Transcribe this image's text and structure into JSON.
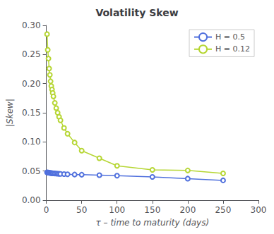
{
  "chart_data": {
    "type": "line",
    "title": "Volatility Skew",
    "x_label": "τ – time to maturity (days)",
    "y_label": "|Skew|",
    "x": [
      1,
      2,
      3,
      4,
      5,
      6,
      7,
      8,
      9,
      10,
      12,
      14,
      16,
      18,
      20,
      25,
      30,
      40,
      50,
      75,
      100,
      150,
      200,
      250
    ],
    "series": [
      {
        "name": "H = 0.5",
        "values": [
          0.0478,
          0.0475,
          0.0473,
          0.047,
          0.0468,
          0.0466,
          0.0464,
          0.0463,
          0.0462,
          0.046,
          0.0458,
          0.0456,
          0.0454,
          0.0452,
          0.045,
          0.0447,
          0.0444,
          0.044,
          0.0437,
          0.043,
          0.042,
          0.04,
          0.037,
          0.034
        ]
      },
      {
        "name": "H = 0.12",
        "values": [
          0.285,
          0.258,
          0.243,
          0.226,
          0.215,
          0.204,
          0.196,
          0.19,
          0.184,
          0.178,
          0.167,
          0.158,
          0.15,
          0.143,
          0.137,
          0.124,
          0.114,
          0.099,
          0.085,
          0.072,
          0.059,
          0.052,
          0.051,
          0.046
        ]
      }
    ],
    "xlim": [
      0,
      300
    ],
    "xticks": [
      0,
      50,
      100,
      150,
      200,
      250,
      300
    ],
    "ylim": [
      0,
      0.3
    ],
    "yticks": [
      {
        "value": 0,
        "label": "0.00"
      },
      {
        "value": 0.05,
        "label": "0.05"
      },
      {
        "value": 0.1,
        "label": "0.10"
      },
      {
        "value": 0.15,
        "label": "0.15"
      },
      {
        "value": 0.2,
        "label": "0.20"
      },
      {
        "value": 0.25,
        "label": "0.25"
      },
      {
        "value": 0.3,
        "label": "0.30"
      }
    ],
    "marker": "circle",
    "line_style": "solid",
    "grid": false,
    "legend": "upper right"
  }
}
